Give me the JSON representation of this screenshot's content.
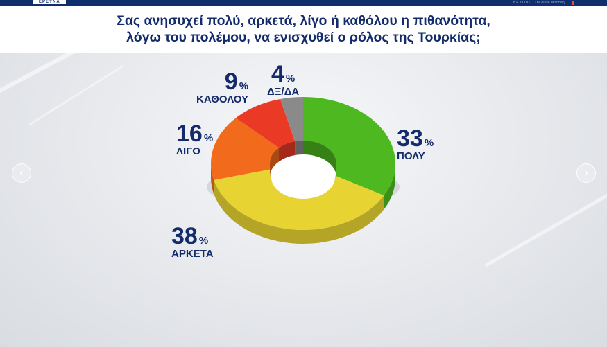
{
  "header": {
    "brand": "ΕΡΕΥΝΑ",
    "right_text_1": "BEYOND",
    "right_text_2": "The pulse of society"
  },
  "title": {
    "line1": "Σας ανησυχεί πολύ, αρκετά, λίγο ή καθόλου η πιθανότητα,",
    "line2": "λόγω του πολέμου, να ενισχυθεί ο ρόλος της Τουρκίας;"
  },
  "nav": {
    "prev_icon": "‹",
    "next_icon": "›"
  },
  "chart_data": {
    "type": "pie",
    "donut": true,
    "unit": "%",
    "slices": [
      {
        "label": "ΠΟΛΥ",
        "value": 33,
        "color": "#4db81f"
      },
      {
        "label": "ΑΡΚΕΤΑ",
        "value": 38,
        "color": "#e7d331"
      },
      {
        "label": "ΛΙΓΟ",
        "value": 16,
        "color": "#f26a1b"
      },
      {
        "label": "ΚΑΘΟΛΟΥ",
        "value": 9,
        "color": "#ea3a26"
      },
      {
        "label": "ΔΞ/ΔΑ",
        "value": 4,
        "color": "#8a8a8a"
      }
    ]
  }
}
